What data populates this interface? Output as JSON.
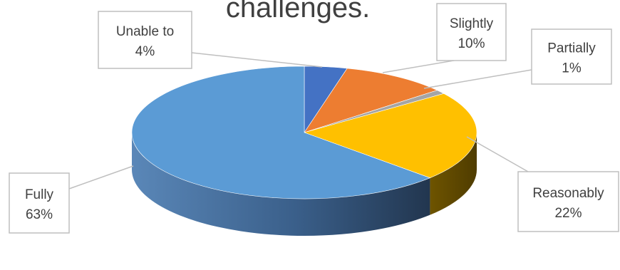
{
  "chart_data": {
    "type": "pie",
    "title": "challenges.",
    "categories": [
      "Unable to",
      "Slightly",
      "Partially",
      "Reasonably",
      "Fully"
    ],
    "values": [
      4,
      10,
      1,
      22,
      63
    ],
    "value_labels": [
      "4%",
      "10%",
      "1%",
      "22%",
      "63%"
    ],
    "colors": [
      "#4472C4",
      "#ED7D31",
      "#A5A5A5",
      "#FFC000",
      "#5B9BD5"
    ],
    "legend": "none",
    "style": "3d"
  }
}
